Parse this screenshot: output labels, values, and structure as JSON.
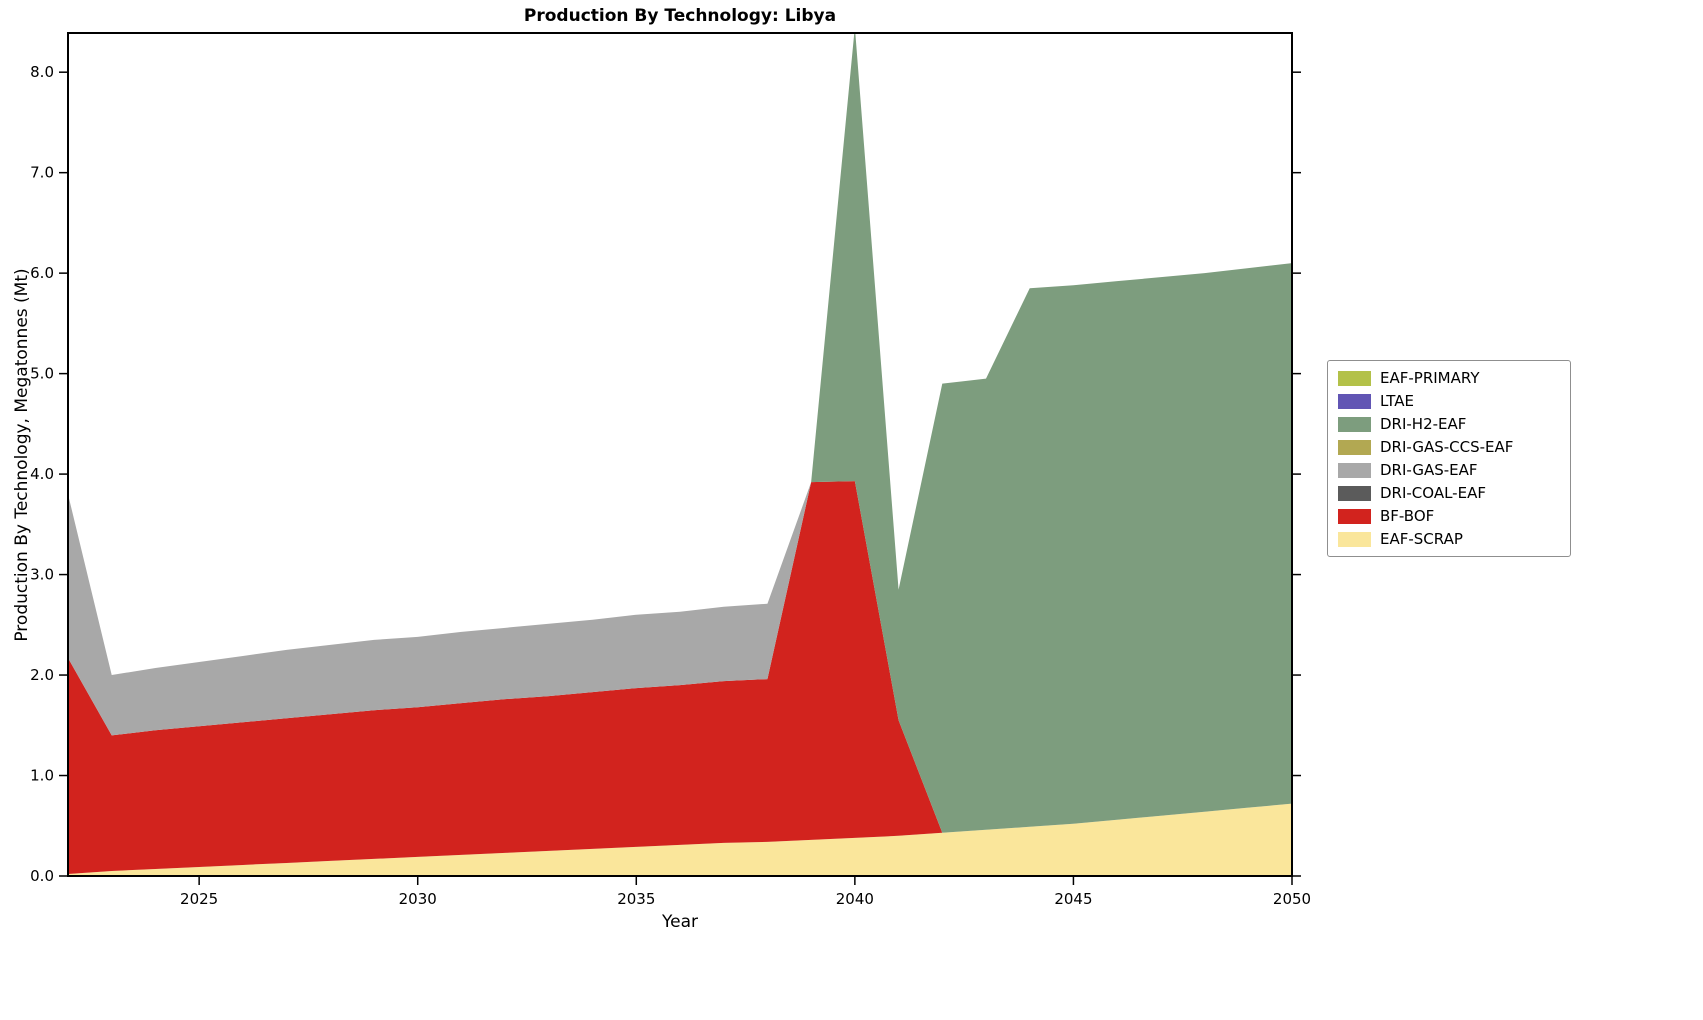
{
  "title": "Production By Technology: Libya",
  "axes": {
    "xlabel": "Year",
    "ylabel": "Production By Technology, Megatonnes (Mt)",
    "xlim": [
      2022,
      2050
    ],
    "ylim": [
      0,
      8.39
    ],
    "xticks": [
      2025,
      2030,
      2035,
      2040,
      2045,
      2050
    ],
    "xtick_labels": [
      "2025",
      "2030",
      "2035",
      "2040",
      "2045",
      "2050"
    ],
    "yticks": [
      0,
      1,
      2,
      3,
      4,
      5,
      6,
      7,
      8
    ],
    "ytick_labels": [
      "0.0",
      "1.0",
      "2.0",
      "3.0",
      "4.0",
      "5.0",
      "6.0",
      "7.0",
      "8.0"
    ],
    "grid": false,
    "frame_color": "#000000"
  },
  "chart_data": {
    "type": "area",
    "stacked": true,
    "title": "Production By Technology: Libya",
    "xlabel": "Year",
    "ylabel": "Production By Technology, Megatonnes (Mt)",
    "legend_position": "right-outside",
    "legend_order_top_to_bottom": [
      "EAF-PRIMARY",
      "LTAE",
      "DRI-H2-EAF",
      "DRI-GAS-CCS-EAF",
      "DRI-GAS-EAF",
      "DRI-COAL-EAF",
      "BF-BOF",
      "EAF-SCRAP"
    ],
    "stack_order_bottom_to_top": [
      "EAF-SCRAP",
      "BF-BOF",
      "DRI-COAL-EAF",
      "DRI-GAS-EAF",
      "DRI-GAS-CCS-EAF",
      "DRI-H2-EAF",
      "LTAE",
      "EAF-PRIMARY"
    ],
    "x": [
      2022,
      2023,
      2024,
      2025,
      2026,
      2027,
      2028,
      2029,
      2030,
      2031,
      2032,
      2033,
      2034,
      2035,
      2036,
      2037,
      2038,
      2039,
      2040,
      2041,
      2042,
      2043,
      2044,
      2045,
      2046,
      2047,
      2048,
      2049,
      2050
    ],
    "series": [
      {
        "name": "EAF-PRIMARY",
        "color": "#b3c149",
        "values": [
          0,
          0,
          0,
          0,
          0,
          0,
          0,
          0,
          0,
          0,
          0,
          0,
          0,
          0,
          0,
          0,
          0,
          0,
          0,
          0,
          0,
          0,
          0,
          0,
          0,
          0,
          0,
          0,
          0
        ]
      },
      {
        "name": "LTAE",
        "color": "#6155b4",
        "values": [
          0,
          0,
          0,
          0,
          0,
          0,
          0,
          0,
          0,
          0,
          0,
          0,
          0,
          0,
          0,
          0,
          0,
          0,
          0,
          0,
          0,
          0,
          0,
          0,
          0,
          0,
          0,
          0,
          0
        ]
      },
      {
        "name": "DRI-H2-EAF",
        "color": "#7d9d7e",
        "values": [
          0,
          0,
          0,
          0,
          0,
          0,
          0,
          0,
          0,
          0,
          0,
          0,
          0,
          0,
          0,
          0,
          0,
          0,
          4.52,
          1.3,
          4.47,
          4.49,
          5.36,
          5.36,
          5.36,
          5.36,
          5.36,
          5.37,
          5.38
        ]
      },
      {
        "name": "DRI-GAS-CCS-EAF",
        "color": "#b2a852",
        "values": [
          0,
          0,
          0,
          0,
          0,
          0,
          0,
          0,
          0,
          0,
          0,
          0,
          0,
          0,
          0,
          0,
          0,
          0,
          0,
          0,
          0,
          0,
          0,
          0,
          0,
          0,
          0,
          0,
          0
        ]
      },
      {
        "name": "DRI-GAS-EAF",
        "color": "#a8a8a8",
        "values": [
          1.63,
          0.6,
          0.62,
          0.64,
          0.66,
          0.68,
          0.69,
          0.7,
          0.7,
          0.71,
          0.71,
          0.72,
          0.72,
          0.73,
          0.73,
          0.74,
          0.75,
          0,
          0,
          0,
          0,
          0,
          0,
          0,
          0,
          0,
          0,
          0,
          0
        ]
      },
      {
        "name": "DRI-COAL-EAF",
        "color": "#5b5b5b",
        "values": [
          0,
          0,
          0,
          0,
          0,
          0,
          0,
          0,
          0,
          0,
          0,
          0,
          0,
          0,
          0,
          0,
          0,
          0,
          0,
          0,
          0,
          0,
          0,
          0,
          0,
          0,
          0,
          0,
          0
        ]
      },
      {
        "name": "BF-BOF",
        "color": "#d2231e",
        "values": [
          2.15,
          1.35,
          1.38,
          1.4,
          1.42,
          1.44,
          1.46,
          1.48,
          1.49,
          1.51,
          1.53,
          1.54,
          1.56,
          1.58,
          1.59,
          1.61,
          1.62,
          3.56,
          3.55,
          1.15,
          0,
          0,
          0,
          0,
          0,
          0,
          0,
          0,
          0
        ]
      },
      {
        "name": "EAF-SCRAP",
        "color": "#fae69b",
        "values": [
          0.02,
          0.05,
          0.07,
          0.09,
          0.11,
          0.13,
          0.15,
          0.17,
          0.19,
          0.21,
          0.23,
          0.25,
          0.27,
          0.29,
          0.31,
          0.33,
          0.34,
          0.36,
          0.38,
          0.4,
          0.43,
          0.46,
          0.49,
          0.52,
          0.56,
          0.6,
          0.64,
          0.68,
          0.72
        ]
      }
    ]
  }
}
